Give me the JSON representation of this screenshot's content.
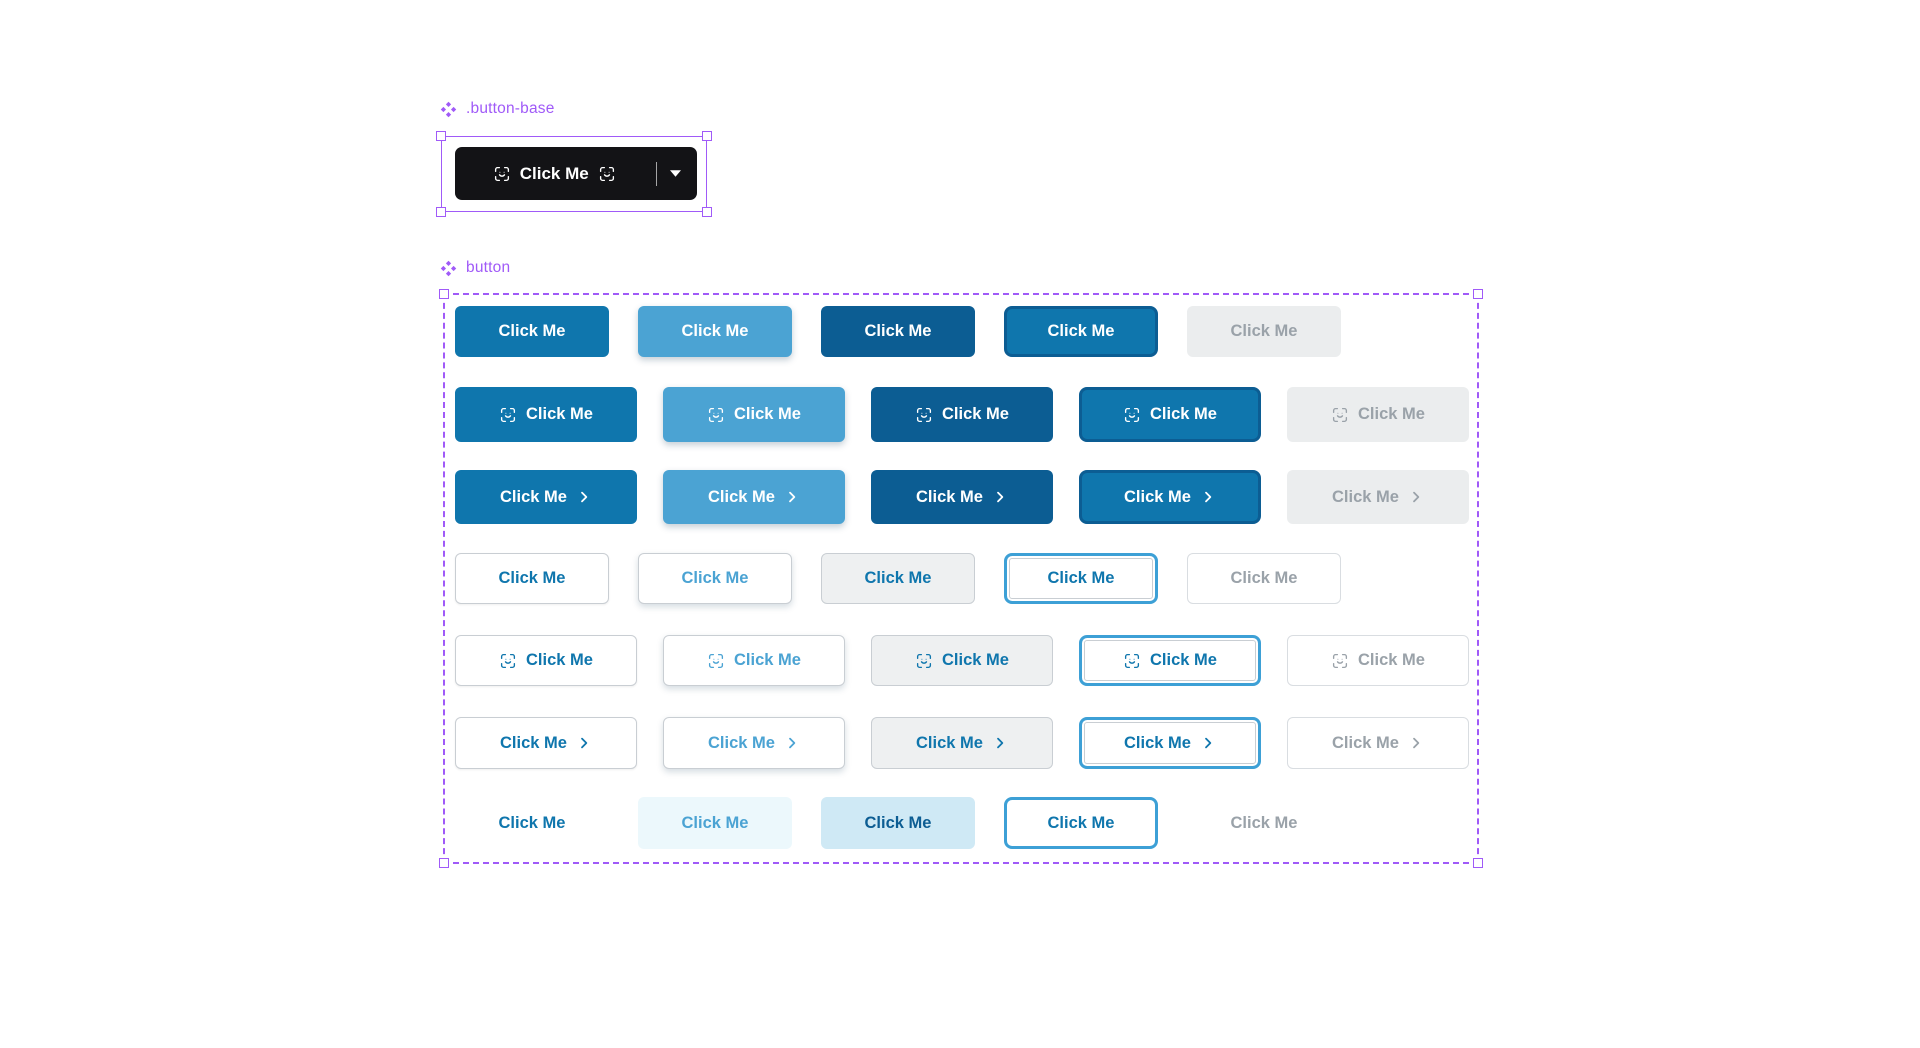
{
  "canvas": {
    "background": "#ffffff"
  },
  "colors": {
    "component_purple": "#A05AF8",
    "primary_blue": "#0F76AD",
    "hover_blue": "#4BA3D3",
    "pressed_blue": "#0C5D93",
    "focus_ring_blue": "#3DA0D6",
    "disabled_bg": "#EBEDEE",
    "disabled_text": "#9AA2A9",
    "outline_border": "#C9CED3",
    "outline_pressed_bg": "#EEF0F1",
    "ghost_hover_bg": "#ECF8FC",
    "ghost_pressed_bg": "#CFE9F5",
    "base_button_black": "#131316",
    "text_on_dark": "#FFFFFF"
  },
  "button_base": {
    "layer_label": ".button-base",
    "layer_icon": "component-icon",
    "text": "Click Me",
    "leading_icon": "placeholder-icon",
    "trailing_icon": "placeholder-icon",
    "caret_icon": "caret-down-icon",
    "has_divider": true
  },
  "button_set": {
    "layer_label": "button",
    "layer_icon": "component-icon",
    "text": "Click Me",
    "states": [
      "default",
      "hover",
      "pressed",
      "focus",
      "disabled"
    ],
    "rows": [
      {
        "name": "solid",
        "style": "solid",
        "icon": "none"
      },
      {
        "name": "solid-leading-icon",
        "style": "solid",
        "icon": "leading-placeholder"
      },
      {
        "name": "solid-trailing-chevron",
        "style": "solid",
        "icon": "trailing-chevron"
      },
      {
        "name": "outline",
        "style": "outline",
        "icon": "none"
      },
      {
        "name": "outline-leading-icon",
        "style": "outline",
        "icon": "leading-placeholder"
      },
      {
        "name": "outline-trailing-chevron",
        "style": "outline",
        "icon": "trailing-chevron"
      },
      {
        "name": "ghost",
        "style": "ghost",
        "icon": "none"
      }
    ]
  }
}
